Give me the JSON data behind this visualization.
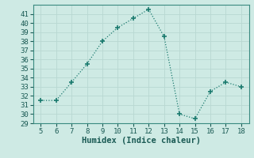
{
  "x": [
    5,
    6,
    7,
    8,
    9,
    10,
    11,
    12,
    13,
    14,
    15,
    16,
    17,
    18
  ],
  "y": [
    31.5,
    31.5,
    33.5,
    35.5,
    38.0,
    39.5,
    40.5,
    41.5,
    38.5,
    30.0,
    29.5,
    32.5,
    33.5,
    33.0
  ],
  "line_color": "#1a7a6e",
  "marker": "+",
  "marker_size": 4,
  "marker_linewidth": 1.2,
  "bg_color": "#ceeae4",
  "grid_color": "#b8d8d2",
  "xlabel": "Humidex (Indice chaleur)",
  "xlim": [
    4.5,
    18.5
  ],
  "ylim": [
    29,
    42
  ],
  "yticks": [
    29,
    30,
    31,
    32,
    33,
    34,
    35,
    36,
    37,
    38,
    39,
    40,
    41
  ],
  "xticks": [
    5,
    6,
    7,
    8,
    9,
    10,
    11,
    12,
    13,
    14,
    15,
    16,
    17,
    18
  ],
  "tick_labelsize": 6.5,
  "xlabel_fontsize": 7.5,
  "spine_color": "#3a8a80"
}
